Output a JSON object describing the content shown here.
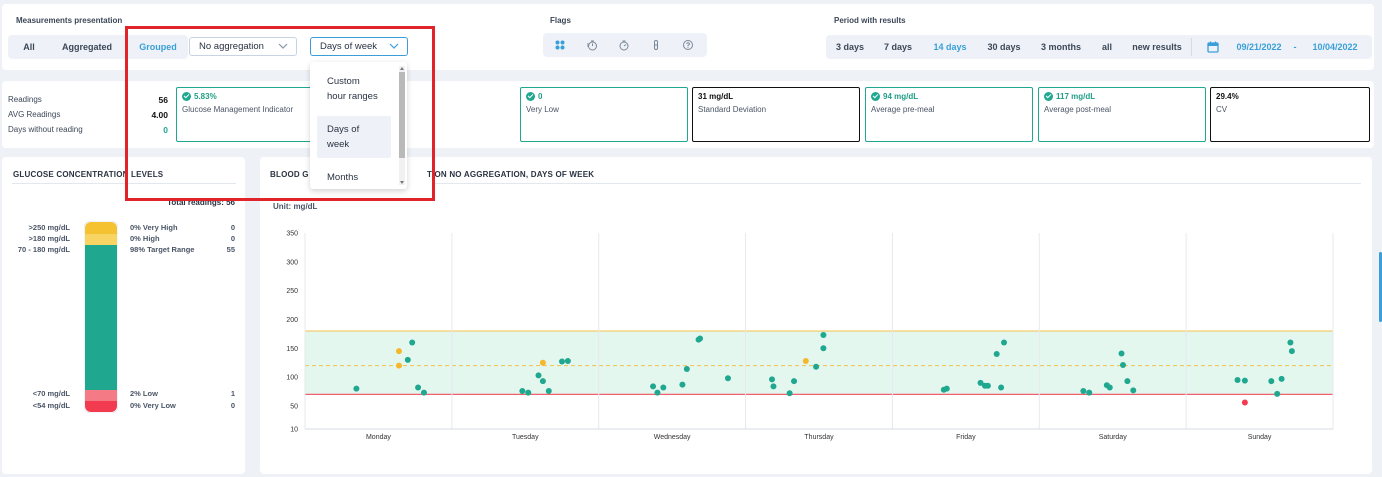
{
  "header": {
    "presentation_title": "Measurements presentation",
    "modes": [
      "All",
      "Aggregated",
      "Grouped"
    ],
    "active_mode": "Grouped",
    "aggregation_value": "No aggregation",
    "grouping_value": "Days of week",
    "grouping_options": [
      "Custom hour ranges",
      "Days of week",
      "Months"
    ],
    "flags_title": "Flags",
    "flag_icons": [
      "grid-icon",
      "timer-fast-icon",
      "timer-icon",
      "vial-icon",
      "question-icon"
    ],
    "period_title": "Period with results",
    "periods": [
      "3 days",
      "7 days",
      "14 days",
      "30 days",
      "3 months",
      "all",
      "new results"
    ],
    "active_period": "14 days",
    "date_from": "09/21/2022",
    "date_sep": "-",
    "date_to": "10/04/2022"
  },
  "readings": {
    "rows": [
      {
        "label": "Readings",
        "value": "56"
      },
      {
        "label": "AVG Readings",
        "value": "4.00"
      },
      {
        "label": "Days without reading",
        "value": "0"
      }
    ]
  },
  "cards": [
    {
      "value": "5.83%",
      "label": "Glucose Management Indicator",
      "check": true,
      "style": "green"
    },
    {
      "value": "0",
      "label": "Very Low",
      "check": true,
      "style": "green"
    },
    {
      "value": "31 mg/dL",
      "label": "Standard Deviation",
      "check": false,
      "style": "dark"
    },
    {
      "value": "94 mg/dL",
      "label": "Average pre-meal",
      "check": true,
      "style": "green"
    },
    {
      "value": "117 mg/dL",
      "label": "Average post-meal",
      "check": true,
      "style": "green"
    },
    {
      "value": "29.4%",
      "label": "CV",
      "check": false,
      "style": "dark"
    }
  ],
  "levels": {
    "title": "GLUCOSE CONCENTRATION LEVELS",
    "total_label": "Total readings:",
    "total": "56",
    "rows": [
      {
        "range": ">250 mg/dL",
        "pct": "0% Very High",
        "count": "0",
        "color": "#f5c232"
      },
      {
        "range": ">180 mg/dL",
        "pct": "0% High",
        "count": "0",
        "color": "#f8d563"
      },
      {
        "range": "70 - 180 mg/dL",
        "pct": "98% Target Range",
        "count": "55",
        "color": "#1fa88f"
      },
      {
        "range": "<70 mg/dL",
        "pct": "2% Low",
        "count": "1",
        "color": "#f47a86"
      },
      {
        "range": "<54 mg/dL",
        "pct": "0% Very Low",
        "count": "0",
        "color": "#f23b4f"
      }
    ]
  },
  "chart_title_left": "BLOOD G",
  "chart_title_right": "TION NO AGGREGATION, DAYS OF WEEK",
  "colors": {
    "accent": "#3a9fd8",
    "target": "#1fa88f",
    "high": "#f5b72c",
    "low": "#f23b4f"
  },
  "chart_data": {
    "type": "scatter",
    "unit_label": "Unit: mg/dL",
    "categories": [
      "Monday",
      "Tuesday",
      "Wednesday",
      "Thursday",
      "Friday",
      "Saturday",
      "Sunday"
    ],
    "ylim": [
      10,
      350
    ],
    "yticks": [
      10,
      50,
      100,
      150,
      200,
      250,
      300,
      350
    ],
    "target_range": [
      70,
      180
    ],
    "mid_line": 120,
    "low_line": 70,
    "points": [
      {
        "day": "Monday",
        "offset": -0.15,
        "y": 80,
        "flag": "normal"
      },
      {
        "day": "Monday",
        "offset": 0.14,
        "y": 145,
        "flag": "high"
      },
      {
        "day": "Monday",
        "offset": 0.14,
        "y": 120,
        "flag": "high"
      },
      {
        "day": "Monday",
        "offset": 0.2,
        "y": 130,
        "flag": "normal"
      },
      {
        "day": "Monday",
        "offset": 0.23,
        "y": 160,
        "flag": "normal"
      },
      {
        "day": "Monday",
        "offset": 0.27,
        "y": 82,
        "flag": "normal"
      },
      {
        "day": "Monday",
        "offset": 0.31,
        "y": 73,
        "flag": "normal"
      },
      {
        "day": "Tuesday",
        "offset": -0.02,
        "y": 76,
        "flag": "normal"
      },
      {
        "day": "Tuesday",
        "offset": 0.02,
        "y": 73,
        "flag": "normal"
      },
      {
        "day": "Tuesday",
        "offset": 0.09,
        "y": 103,
        "flag": "normal"
      },
      {
        "day": "Tuesday",
        "offset": 0.12,
        "y": 93,
        "flag": "normal"
      },
      {
        "day": "Tuesday",
        "offset": 0.12,
        "y": 125,
        "flag": "high"
      },
      {
        "day": "Tuesday",
        "offset": 0.16,
        "y": 76,
        "flag": "normal"
      },
      {
        "day": "Tuesday",
        "offset": 0.25,
        "y": 127,
        "flag": "normal"
      },
      {
        "day": "Tuesday",
        "offset": 0.29,
        "y": 128,
        "flag": "normal"
      },
      {
        "day": "Wednesday",
        "offset": -0.13,
        "y": 84,
        "flag": "normal"
      },
      {
        "day": "Wednesday",
        "offset": -0.1,
        "y": 73,
        "flag": "normal"
      },
      {
        "day": "Wednesday",
        "offset": -0.06,
        "y": 82,
        "flag": "normal"
      },
      {
        "day": "Wednesday",
        "offset": 0.07,
        "y": 87,
        "flag": "normal"
      },
      {
        "day": "Wednesday",
        "offset": 0.1,
        "y": 114,
        "flag": "normal"
      },
      {
        "day": "Wednesday",
        "offset": 0.18,
        "y": 165,
        "flag": "normal"
      },
      {
        "day": "Wednesday",
        "offset": 0.19,
        "y": 167,
        "flag": "normal"
      },
      {
        "day": "Wednesday",
        "offset": 0.38,
        "y": 98,
        "flag": "normal"
      },
      {
        "day": "Thursday",
        "offset": -0.32,
        "y": 96,
        "flag": "normal"
      },
      {
        "day": "Thursday",
        "offset": -0.31,
        "y": 84,
        "flag": "normal"
      },
      {
        "day": "Thursday",
        "offset": -0.2,
        "y": 72,
        "flag": "normal"
      },
      {
        "day": "Thursday",
        "offset": -0.17,
        "y": 93,
        "flag": "normal"
      },
      {
        "day": "Thursday",
        "offset": -0.09,
        "y": 128,
        "flag": "high"
      },
      {
        "day": "Thursday",
        "offset": -0.02,
        "y": 118,
        "flag": "normal"
      },
      {
        "day": "Thursday",
        "offset": 0.03,
        "y": 173,
        "flag": "normal"
      },
      {
        "day": "Thursday",
        "offset": 0.03,
        "y": 150,
        "flag": "normal"
      },
      {
        "day": "Friday",
        "offset": -0.15,
        "y": 78,
        "flag": "normal"
      },
      {
        "day": "Friday",
        "offset": -0.13,
        "y": 80,
        "flag": "normal"
      },
      {
        "day": "Friday",
        "offset": 0.1,
        "y": 90,
        "flag": "normal"
      },
      {
        "day": "Friday",
        "offset": 0.13,
        "y": 85,
        "flag": "normal"
      },
      {
        "day": "Friday",
        "offset": 0.15,
        "y": 85,
        "flag": "normal"
      },
      {
        "day": "Friday",
        "offset": 0.21,
        "y": 140,
        "flag": "normal"
      },
      {
        "day": "Friday",
        "offset": 0.24,
        "y": 82,
        "flag": "normal"
      },
      {
        "day": "Friday",
        "offset": 0.26,
        "y": 160,
        "flag": "normal"
      },
      {
        "day": "Saturday",
        "offset": -0.2,
        "y": 76,
        "flag": "normal"
      },
      {
        "day": "Saturday",
        "offset": -0.16,
        "y": 73,
        "flag": "normal"
      },
      {
        "day": "Saturday",
        "offset": -0.04,
        "y": 86,
        "flag": "normal"
      },
      {
        "day": "Saturday",
        "offset": -0.02,
        "y": 82,
        "flag": "normal"
      },
      {
        "day": "Saturday",
        "offset": 0.06,
        "y": 141,
        "flag": "normal"
      },
      {
        "day": "Saturday",
        "offset": 0.07,
        "y": 121,
        "flag": "normal"
      },
      {
        "day": "Saturday",
        "offset": 0.1,
        "y": 93,
        "flag": "normal"
      },
      {
        "day": "Saturday",
        "offset": 0.14,
        "y": 77,
        "flag": "normal"
      },
      {
        "day": "Sunday",
        "offset": -0.15,
        "y": 95,
        "flag": "normal"
      },
      {
        "day": "Sunday",
        "offset": -0.1,
        "y": 94,
        "flag": "normal"
      },
      {
        "day": "Sunday",
        "offset": -0.1,
        "y": 56,
        "flag": "low"
      },
      {
        "day": "Sunday",
        "offset": 0.08,
        "y": 93,
        "flag": "normal"
      },
      {
        "day": "Sunday",
        "offset": 0.12,
        "y": 71,
        "flag": "normal"
      },
      {
        "day": "Sunday",
        "offset": 0.15,
        "y": 97,
        "flag": "normal"
      },
      {
        "day": "Sunday",
        "offset": 0.21,
        "y": 160,
        "flag": "normal"
      },
      {
        "day": "Sunday",
        "offset": 0.22,
        "y": 145,
        "flag": "normal"
      }
    ]
  }
}
